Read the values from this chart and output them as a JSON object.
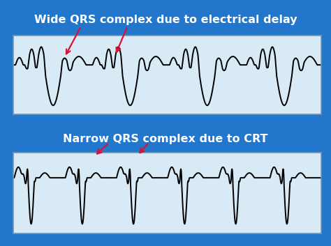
{
  "bg_color": "#2277cc",
  "panel_bg": "#d8eaf5",
  "title1": "Wide QRS complex due to electrical delay",
  "title2": "Narrow QRS complex due to CRT",
  "title_color": "white",
  "title_fontsize": 11.5,
  "title_fontweight": "bold",
  "ecg_color": "black",
  "ecg_lw": 1.4,
  "arrow_color": "#dd1133",
  "panel_border": "#6699bb"
}
